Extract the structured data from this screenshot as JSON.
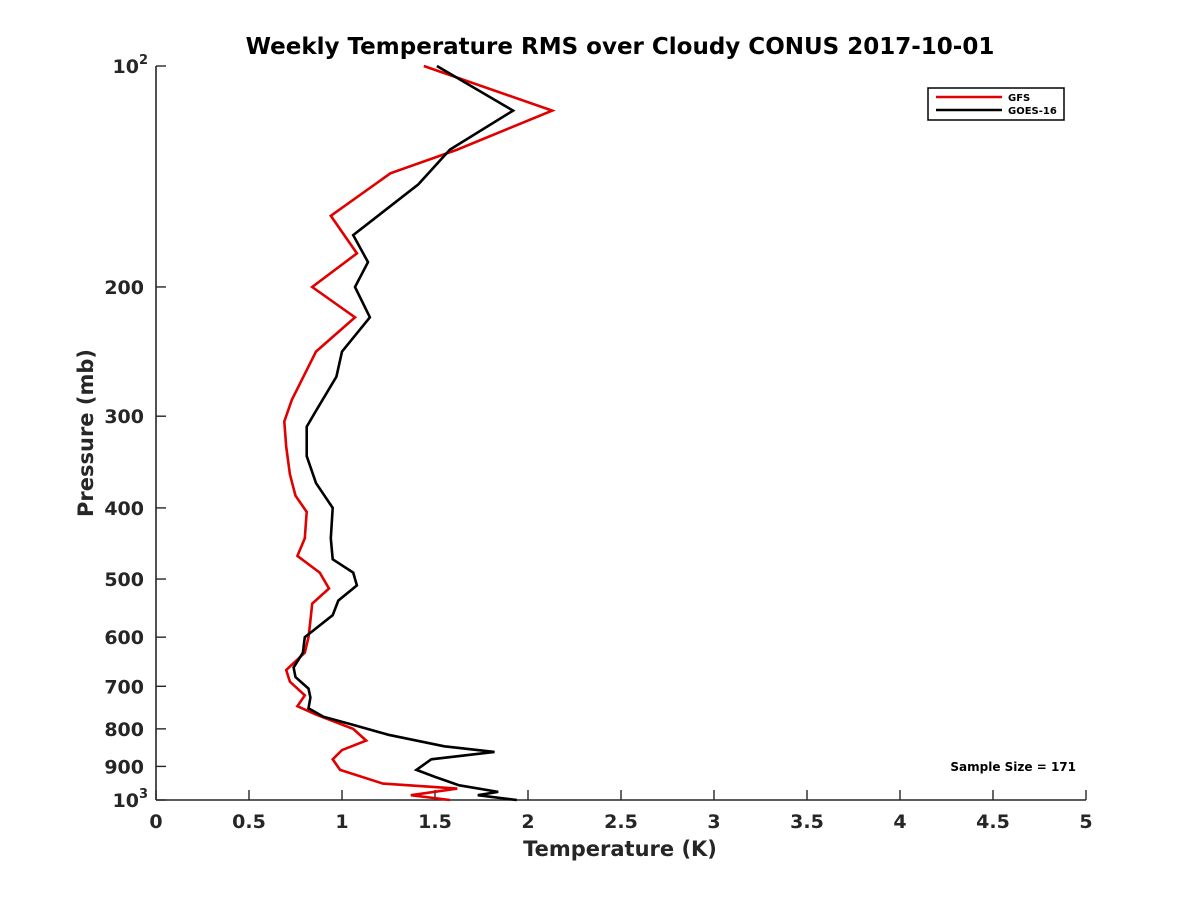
{
  "chart_data": {
    "type": "line",
    "title": "Weekly Temperature RMS over Cloudy CONUS 2017-10-01",
    "xlabel": "Temperature (K)",
    "ylabel": "Pressure (mb)",
    "xlim": [
      0,
      5
    ],
    "ylim": [
      100,
      1000
    ],
    "yscale": "log",
    "y_reversed": true,
    "grid": false,
    "legend_position": "top-right",
    "x_ticks": [
      "0",
      "0.5",
      "1",
      "1.5",
      "2",
      "2.5",
      "3",
      "3.5",
      "4",
      "4.5",
      "5"
    ],
    "y_ticks": [
      {
        "value": 100,
        "base": "10",
        "exp": "2"
      },
      {
        "value": 200,
        "label": "200"
      },
      {
        "value": 300,
        "label": "300"
      },
      {
        "value": 400,
        "label": "400"
      },
      {
        "value": 500,
        "label": "500"
      },
      {
        "value": 600,
        "label": "600"
      },
      {
        "value": 700,
        "label": "700"
      },
      {
        "value": 800,
        "label": "800"
      },
      {
        "value": 900,
        "label": "900"
      },
      {
        "value": 1000,
        "base": "10",
        "exp": "3"
      }
    ],
    "annotation": "Sample Size = 171",
    "series": [
      {
        "name": "GFS",
        "color": "#e00000",
        "points": [
          [
            1.44,
            100
          ],
          [
            2.13,
            115
          ],
          [
            1.62,
            130
          ],
          [
            1.26,
            140
          ],
          [
            0.94,
            160
          ],
          [
            1.08,
            180
          ],
          [
            0.84,
            200
          ],
          [
            1.07,
            220
          ],
          [
            0.86,
            245
          ],
          [
            0.73,
            285
          ],
          [
            0.69,
            305
          ],
          [
            0.7,
            330
          ],
          [
            0.72,
            360
          ],
          [
            0.75,
            385
          ],
          [
            0.81,
            405
          ],
          [
            0.8,
            440
          ],
          [
            0.76,
            465
          ],
          [
            0.88,
            490
          ],
          [
            0.93,
            515
          ],
          [
            0.84,
            540
          ],
          [
            0.83,
            570
          ],
          [
            0.82,
            600
          ],
          [
            0.8,
            630
          ],
          [
            0.7,
            665
          ],
          [
            0.72,
            690
          ],
          [
            0.8,
            720
          ],
          [
            0.76,
            745
          ],
          [
            0.86,
            765
          ],
          [
            1.06,
            800
          ],
          [
            1.13,
            830
          ],
          [
            1.0,
            855
          ],
          [
            0.95,
            880
          ],
          [
            0.99,
            910
          ],
          [
            1.22,
            950
          ],
          [
            1.62,
            965
          ],
          [
            1.37,
            985
          ],
          [
            1.58,
            1000
          ]
        ]
      },
      {
        "name": "GOES-16",
        "color": "#000000",
        "points": [
          [
            1.51,
            100
          ],
          [
            1.92,
            115
          ],
          [
            1.58,
            130
          ],
          [
            1.41,
            145
          ],
          [
            1.06,
            170
          ],
          [
            1.14,
            185
          ],
          [
            1.07,
            200
          ],
          [
            1.15,
            220
          ],
          [
            1.0,
            245
          ],
          [
            0.97,
            265
          ],
          [
            0.86,
            295
          ],
          [
            0.81,
            310
          ],
          [
            0.81,
            340
          ],
          [
            0.86,
            370
          ],
          [
            0.95,
            400
          ],
          [
            0.94,
            440
          ],
          [
            0.95,
            470
          ],
          [
            1.06,
            490
          ],
          [
            1.08,
            510
          ],
          [
            0.98,
            535
          ],
          [
            0.95,
            560
          ],
          [
            0.8,
            600
          ],
          [
            0.79,
            630
          ],
          [
            0.74,
            660
          ],
          [
            0.75,
            680
          ],
          [
            0.82,
            705
          ],
          [
            0.83,
            725
          ],
          [
            0.82,
            750
          ],
          [
            0.9,
            770
          ],
          [
            1.06,
            790
          ],
          [
            1.25,
            815
          ],
          [
            1.55,
            845
          ],
          [
            1.82,
            860
          ],
          [
            1.48,
            880
          ],
          [
            1.4,
            910
          ],
          [
            1.5,
            930
          ],
          [
            1.63,
            955
          ],
          [
            1.84,
            975
          ],
          [
            1.73,
            985
          ],
          [
            1.94,
            1000
          ]
        ]
      }
    ]
  }
}
